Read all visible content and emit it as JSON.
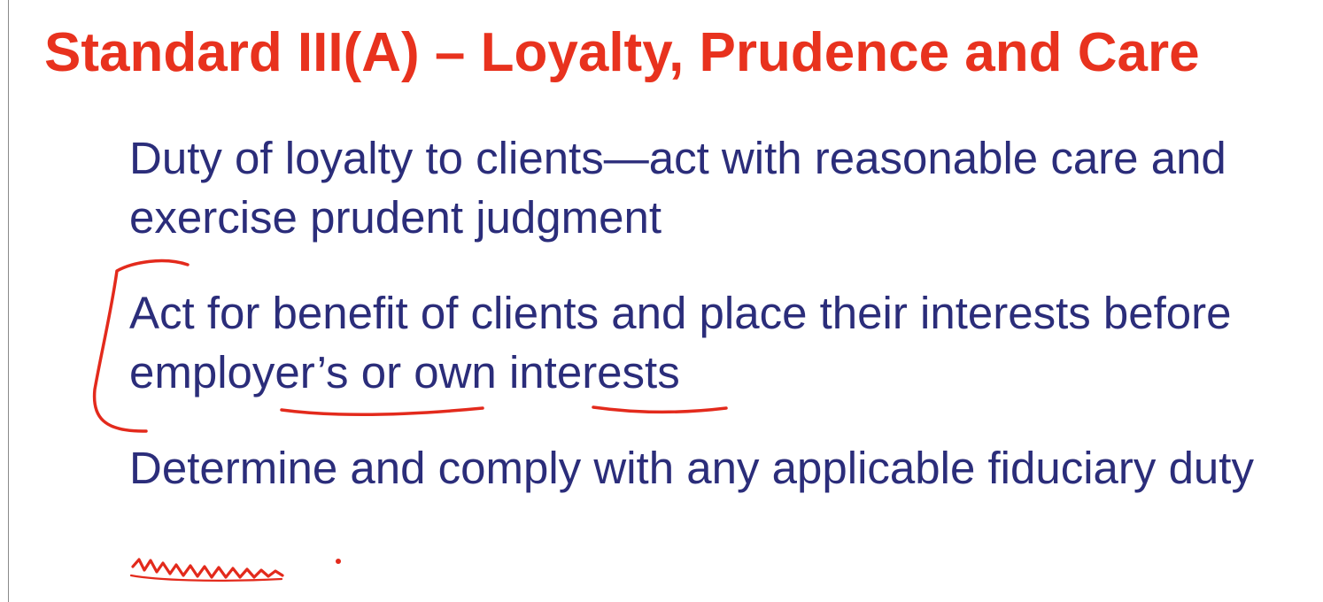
{
  "slide": {
    "title": "Standard III(A) – Loyalty, Prudence and Care",
    "bullets": [
      {
        "text": "Duty of loyalty to clients—act with reasonable care and exercise prudent judgment"
      },
      {
        "text": "Act for benefit of clients and place their interests before employer’s or own interests"
      },
      {
        "text": "Determine and comply with any applicable fiduciary duty"
      }
    ]
  },
  "colors": {
    "title": "#e8321e",
    "body_text": "#2b2d7a",
    "ink_annotation": "#e32a1c",
    "background": "#ffffff"
  }
}
